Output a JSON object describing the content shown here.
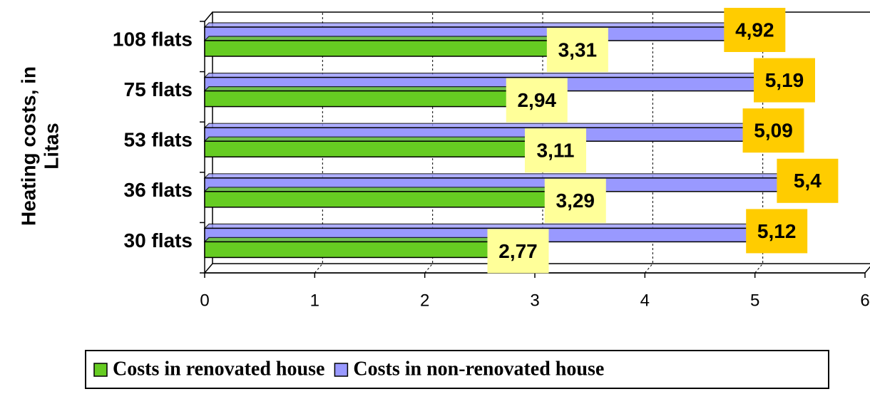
{
  "chart_data": {
    "type": "bar",
    "orientation": "horizontal",
    "y_axis_title": [
      "Heating costs, in",
      "Litas"
    ],
    "categories": [
      "108 flats",
      "75 flats",
      "53 flats",
      "36 flats",
      "30 flats"
    ],
    "series": [
      {
        "name": "Costs in renovated house",
        "color": "#66cc22",
        "label_background": "#ffff99",
        "values": [
          3.31,
          2.94,
          3.11,
          3.29,
          2.77
        ],
        "value_labels": [
          "3,31",
          "2,94",
          "3,11",
          "3,29",
          "2,77"
        ]
      },
      {
        "name": "Costs in non-renovated house",
        "color": "#9999ff",
        "label_background": "#ffcc00",
        "values": [
          4.92,
          5.19,
          5.09,
          5.4,
          5.12
        ],
        "value_labels": [
          "4,92",
          "5,19",
          "5,09",
          "5,4",
          "5,12"
        ]
      }
    ],
    "xlim": [
      0,
      6
    ],
    "xticks": [
      0,
      1,
      2,
      3,
      4,
      5,
      6
    ],
    "grid": true,
    "legend": "bottom"
  }
}
